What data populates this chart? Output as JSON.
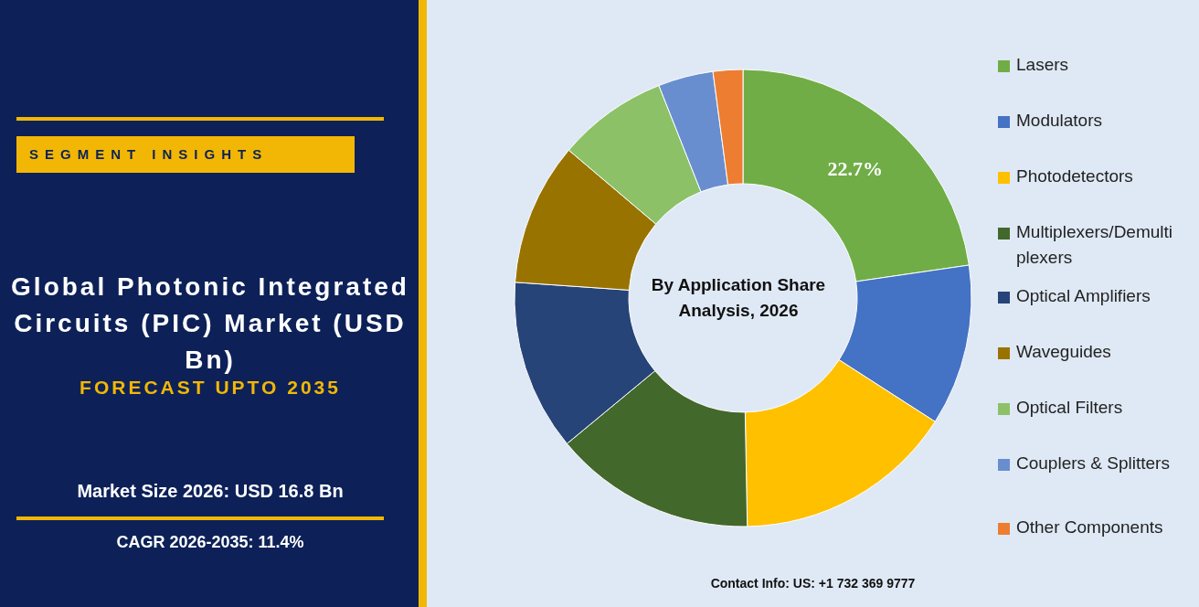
{
  "chart_data": {
    "type": "donut",
    "title": "Global Photonic Integrated Circuits (PIC) Market (USD Bn)",
    "subtitle": "FORECAST UPTO 2035",
    "annotations": [
      "SEGMENT INSIGHTS",
      "By Application Share Analysis, 2026",
      "Market Size 2026: USD 16.8 Bn",
      "CAGR 2026-2035: 11.4%",
      "Contact Info: US: +1 732 369 9777"
    ],
    "categories": [
      "Lasers",
      "Modulators",
      "Photodetectors",
      "Multiplexers/Demultiplexers",
      "Optical Amplifiers",
      "Waveguides",
      "Optical Filters",
      "Couplers & Splitters",
      "Other Components"
    ],
    "values": [
      22.7,
      11.4,
      15.6,
      14.3,
      12.1,
      10.1,
      7.8,
      3.9,
      2.1
    ],
    "value_labels": [
      "22.7%",
      null,
      null,
      null,
      null,
      null,
      null,
      null,
      null
    ],
    "colors": [
      "#70ad47",
      "#4472c4",
      "#ffc000",
      "#43682b",
      "#264478",
      "#997300",
      "#8cc168",
      "#698ed0",
      "#ed7d31"
    ],
    "legend": "right"
  }
}
